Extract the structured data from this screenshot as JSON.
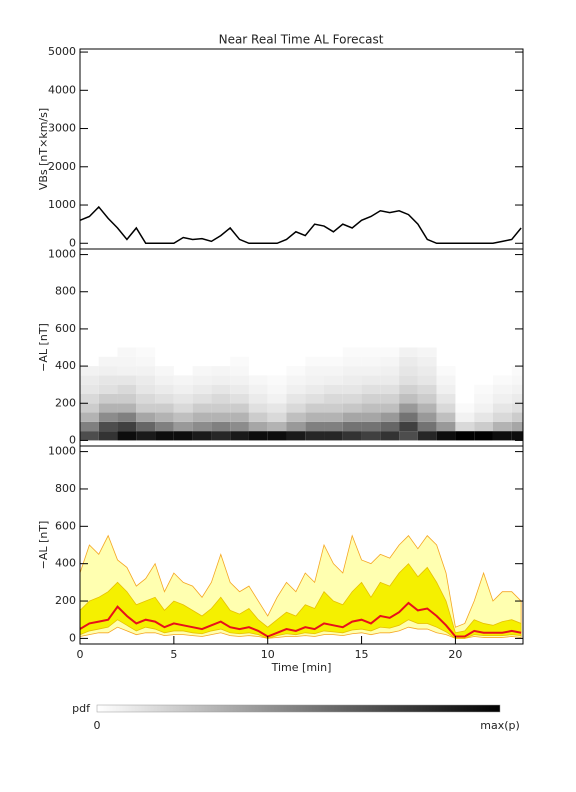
{
  "title": "Near Real Time AL Forecast",
  "chart_data": [
    {
      "type": "line",
      "y_label": "VBs [nT×km/s]",
      "color": "#000000",
      "xlim": [
        0,
        23.6
      ],
      "ylim": [
        -150,
        5080
      ],
      "yticks": [
        0,
        1000,
        2000,
        3000,
        4000,
        5000
      ],
      "x": [
        0,
        0.5,
        1,
        1.5,
        2,
        2.5,
        3,
        3.5,
        4,
        4.5,
        5,
        5.5,
        6,
        6.5,
        7,
        7.5,
        8,
        8.5,
        9,
        9.5,
        10,
        10.5,
        11,
        11.5,
        12,
        12.5,
        13,
        13.5,
        14,
        14.5,
        15,
        15.5,
        16,
        16.5,
        17,
        17.5,
        18,
        18.5,
        19,
        19.5,
        20,
        20.5,
        21,
        21.5,
        22,
        22.5,
        23,
        23.5
      ],
      "values": [
        600,
        700,
        950,
        650,
        400,
        100,
        400,
        0,
        0,
        0,
        0,
        150,
        100,
        120,
        50,
        200,
        400,
        100,
        0,
        0,
        0,
        0,
        100,
        300,
        200,
        500,
        450,
        300,
        500,
        400,
        600,
        700,
        850,
        800,
        850,
        750,
        500,
        100,
        0,
        0,
        0,
        0,
        0,
        0,
        0,
        50,
        100,
        400
      ]
    },
    {
      "type": "heatmap",
      "y_label": "−AL [nT]",
      "xlim": [
        0,
        23.6
      ],
      "ylim": [
        -30,
        1030
      ],
      "yticks": [
        0,
        200,
        400,
        600,
        800,
        1000
      ],
      "colormap": [
        "#ffffff",
        "#000000"
      ],
      "colorbar": {
        "label": "pdf",
        "min_label": "0",
        "max_label": "max(p)"
      },
      "x_bins": [
        0,
        1,
        2,
        3,
        4,
        5,
        6,
        7,
        8,
        9,
        10,
        11,
        12,
        13,
        14,
        15,
        16,
        17,
        18,
        19,
        20,
        21,
        22,
        23,
        24
      ],
      "y_bins": [
        0,
        50,
        100,
        150,
        200,
        250,
        300,
        350,
        400,
        450,
        500
      ],
      "z": [
        [
          0.7,
          0.5,
          0.3,
          0.2,
          0.15,
          0.1,
          0.08,
          0.05,
          0,
          0
        ],
        [
          0.8,
          0.7,
          0.45,
          0.3,
          0.2,
          0.12,
          0.1,
          0.06,
          0.04,
          0
        ],
        [
          0.95,
          0.75,
          0.5,
          0.3,
          0.2,
          0.15,
          0.1,
          0.05,
          0.04,
          0.03
        ],
        [
          0.9,
          0.6,
          0.35,
          0.2,
          0.15,
          0.1,
          0.08,
          0.05,
          0.03,
          0.02
        ],
        [
          0.95,
          0.5,
          0.3,
          0.2,
          0.12,
          0.08,
          0.05,
          0.03,
          0,
          0
        ],
        [
          0.95,
          0.4,
          0.25,
          0.15,
          0.1,
          0.06,
          0.04,
          0,
          0,
          0
        ],
        [
          0.9,
          0.45,
          0.3,
          0.2,
          0.12,
          0.08,
          0.05,
          0.03,
          0,
          0
        ],
        [
          0.85,
          0.5,
          0.3,
          0.2,
          0.15,
          0.1,
          0.06,
          0.04,
          0,
          0
        ],
        [
          0.9,
          0.45,
          0.3,
          0.2,
          0.12,
          0.08,
          0.05,
          0.03,
          0.02,
          0
        ],
        [
          0.95,
          0.35,
          0.2,
          0.12,
          0.08,
          0.05,
          0.03,
          0,
          0,
          0
        ],
        [
          0.95,
          0.3,
          0.15,
          0.1,
          0.05,
          0.03,
          0.02,
          0,
          0,
          0
        ],
        [
          0.9,
          0.4,
          0.25,
          0.15,
          0.1,
          0.06,
          0.04,
          0.02,
          0,
          0
        ],
        [
          0.85,
          0.5,
          0.3,
          0.2,
          0.12,
          0.08,
          0.05,
          0.04,
          0.02,
          0
        ],
        [
          0.85,
          0.5,
          0.3,
          0.2,
          0.15,
          0.1,
          0.06,
          0.04,
          0.02,
          0
        ],
        [
          0.8,
          0.55,
          0.35,
          0.22,
          0.15,
          0.1,
          0.07,
          0.05,
          0.03,
          0.02
        ],
        [
          0.75,
          0.55,
          0.35,
          0.25,
          0.18,
          0.12,
          0.08,
          0.05,
          0.03,
          0.02
        ],
        [
          0.8,
          0.6,
          0.4,
          0.25,
          0.18,
          0.12,
          0.08,
          0.06,
          0.04,
          0.02
        ],
        [
          0.7,
          0.75,
          0.55,
          0.4,
          0.25,
          0.18,
          0.12,
          0.1,
          0.08,
          0.05
        ],
        [
          0.85,
          0.55,
          0.4,
          0.3,
          0.2,
          0.15,
          0.1,
          0.08,
          0.06,
          0.04
        ],
        [
          0.95,
          0.4,
          0.25,
          0.15,
          0.1,
          0.06,
          0.04,
          0.02,
          0,
          0
        ],
        [
          1,
          0.15,
          0.05,
          0.02,
          0,
          0,
          0,
          0,
          0,
          0
        ],
        [
          1,
          0.2,
          0.1,
          0.05,
          0.03,
          0.02,
          0,
          0,
          0,
          0
        ],
        [
          0.95,
          0.3,
          0.15,
          0.1,
          0.06,
          0.04,
          0.02,
          0,
          0,
          0
        ],
        [
          0.95,
          0.35,
          0.2,
          0.12,
          0.08,
          0.05,
          0.03,
          0.02,
          0,
          0
        ]
      ]
    },
    {
      "type": "band",
      "y_label": "−AL [nT]",
      "x_label": "Time [min]",
      "xlim": [
        0,
        23.6
      ],
      "ylim": [
        -30,
        1030
      ],
      "yticks": [
        0,
        200,
        400,
        600,
        800,
        1000
      ],
      "xticks": [
        0,
        5,
        10,
        15,
        20
      ],
      "x": [
        0,
        0.5,
        1,
        1.5,
        2,
        2.5,
        3,
        3.5,
        4,
        4.5,
        5,
        5.5,
        6,
        6.5,
        7,
        7.5,
        8,
        8.5,
        9,
        9.5,
        10,
        10.5,
        11,
        11.5,
        12,
        12.5,
        13,
        13.5,
        14,
        14.5,
        15,
        15.5,
        16,
        16.5,
        17,
        17.5,
        18,
        18.5,
        19,
        19.5,
        20,
        20.5,
        21,
        21.5,
        22,
        22.5,
        23,
        23.5
      ],
      "bands": [
        {
          "color": "#ffffb0",
          "edge": "#f5a623",
          "upper": [
            350,
            500,
            450,
            550,
            420,
            380,
            280,
            320,
            400,
            250,
            350,
            300,
            280,
            220,
            300,
            450,
            300,
            250,
            280,
            200,
            120,
            220,
            300,
            250,
            350,
            300,
            500,
            400,
            350,
            550,
            420,
            400,
            450,
            430,
            500,
            550,
            480,
            550,
            500,
            350,
            60,
            80,
            200,
            350,
            200,
            250,
            250,
            200
          ],
          "lower": [
            10,
            20,
            30,
            30,
            60,
            40,
            20,
            30,
            30,
            15,
            20,
            20,
            15,
            10,
            20,
            30,
            15,
            10,
            15,
            10,
            0,
            5,
            10,
            10,
            15,
            10,
            20,
            20,
            15,
            25,
            30,
            20,
            30,
            30,
            40,
            60,
            50,
            50,
            30,
            20,
            0,
            0,
            10,
            5,
            5,
            5,
            10,
            5
          ]
        },
        {
          "color": "#f5f000",
          "edge": "#e8c000",
          "upper": [
            150,
            200,
            220,
            250,
            300,
            250,
            180,
            200,
            220,
            150,
            200,
            180,
            150,
            120,
            160,
            220,
            150,
            130,
            160,
            100,
            60,
            100,
            140,
            120,
            180,
            160,
            250,
            200,
            180,
            250,
            300,
            220,
            300,
            280,
            350,
            400,
            330,
            380,
            300,
            200,
            30,
            40,
            100,
            80,
            70,
            90,
            100,
            80
          ],
          "lower": [
            20,
            40,
            50,
            60,
            100,
            70,
            40,
            60,
            50,
            30,
            40,
            40,
            30,
            25,
            40,
            50,
            30,
            25,
            30,
            20,
            0,
            15,
            25,
            20,
            30,
            25,
            40,
            35,
            30,
            45,
            50,
            40,
            60,
            55,
            70,
            100,
            80,
            80,
            60,
            35,
            0,
            0,
            20,
            15,
            15,
            15,
            20,
            15
          ]
        }
      ],
      "median": {
        "color": "#e8101a",
        "values": [
          50,
          80,
          90,
          100,
          170,
          120,
          80,
          100,
          90,
          60,
          80,
          70,
          60,
          50,
          70,
          90,
          60,
          50,
          60,
          40,
          10,
          30,
          50,
          40,
          60,
          50,
          80,
          70,
          60,
          90,
          100,
          80,
          120,
          110,
          140,
          190,
          150,
          160,
          120,
          70,
          10,
          10,
          40,
          30,
          30,
          30,
          40,
          30
        ]
      }
    }
  ]
}
